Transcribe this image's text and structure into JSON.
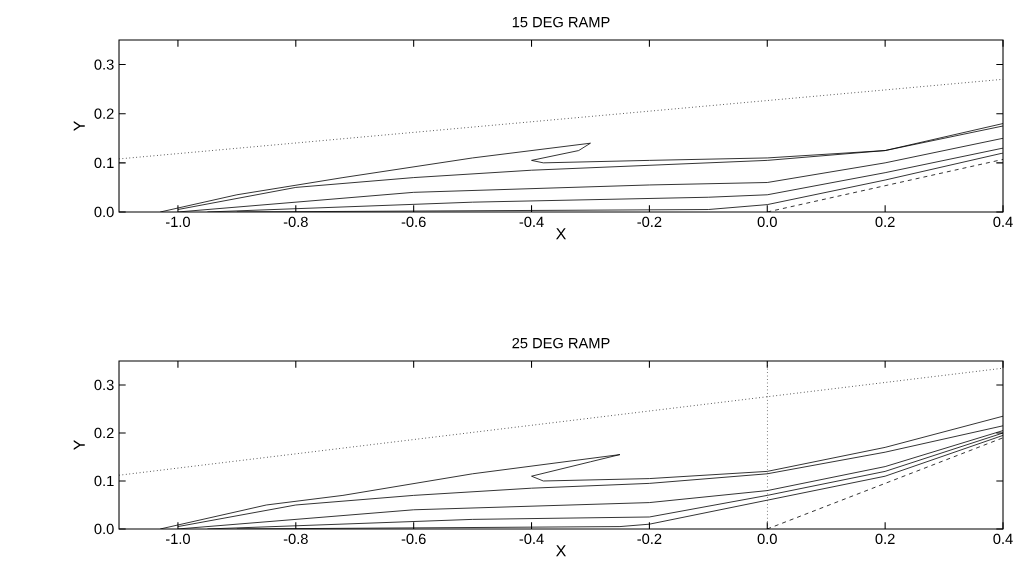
{
  "chart_data": [
    {
      "type": "line",
      "title": "15 DEG RAMP",
      "xlabel": "X",
      "ylabel": "Y",
      "xlim": [
        -1.1,
        0.4
      ],
      "ylim": [
        0,
        0.35
      ],
      "xticks": [
        {
          "value": -1.0,
          "label": "-1.0"
        },
        {
          "value": -0.8,
          "label": "-0.8"
        },
        {
          "value": -0.6,
          "label": "-0.6"
        },
        {
          "value": -0.4,
          "label": "-0.4"
        },
        {
          "value": -0.2,
          "label": "-0.2"
        },
        {
          "value": 0.0,
          "label": "0.0"
        },
        {
          "value": 0.2,
          "label": "0.2"
        },
        {
          "value": 0.4,
          "label": "0.4"
        }
      ],
      "yticks": [
        {
          "value": 0.0,
          "label": "0.0"
        },
        {
          "value": 0.1,
          "label": "0.1"
        },
        {
          "value": 0.2,
          "label": "0.2"
        },
        {
          "value": 0.3,
          "label": "0.3"
        }
      ],
      "grid": false,
      "series": [
        {
          "color": "#000000",
          "line_style": "dotted",
          "x": [
            -1.1,
            0.4
          ],
          "values": [
            0.108,
            0.27
          ]
        },
        {
          "color": "#000000",
          "line_style": "dashed",
          "x": [
            0.0,
            0.4
          ],
          "values": [
            0.0,
            0.107
          ]
        },
        {
          "color": "#000000",
          "line_style": "solid",
          "x": [
            -1.03,
            -0.9,
            -0.72,
            -0.5,
            -0.3,
            -0.32,
            -0.4,
            -0.38,
            -0.2,
            0.0,
            0.2,
            0.4
          ],
          "values": [
            0.0,
            0.035,
            0.07,
            0.11,
            0.14,
            0.125,
            0.105,
            0.1,
            0.105,
            0.11,
            0.125,
            0.18
          ]
        },
        {
          "color": "#000000",
          "line_style": "solid",
          "x": [
            -1.0,
            -0.8,
            -0.6,
            -0.4,
            -0.2,
            0.0,
            0.2,
            0.4
          ],
          "values": [
            0.005,
            0.05,
            0.07,
            0.085,
            0.095,
            0.105,
            0.125,
            0.175
          ]
        },
        {
          "color": "#000000",
          "line_style": "solid",
          "x": [
            -1.0,
            -0.6,
            -0.2,
            0.0,
            0.2,
            0.4
          ],
          "values": [
            0.0,
            0.04,
            0.055,
            0.06,
            0.1,
            0.15
          ]
        },
        {
          "color": "#000000",
          "line_style": "solid",
          "x": [
            -0.95,
            -0.5,
            -0.1,
            0.0,
            0.2,
            0.4
          ],
          "values": [
            0.0,
            0.02,
            0.03,
            0.035,
            0.08,
            0.13
          ]
        },
        {
          "color": "#000000",
          "line_style": "solid",
          "x": [
            -0.9,
            -0.1,
            0.0,
            0.2,
            0.4
          ],
          "values": [
            0.0,
            0.005,
            0.015,
            0.065,
            0.12
          ]
        }
      ]
    },
    {
      "type": "line",
      "title": "25 DEG RAMP",
      "xlabel": "X",
      "ylabel": "Y",
      "xlim": [
        -1.1,
        0.4
      ],
      "ylim": [
        0,
        0.35
      ],
      "xticks": [
        {
          "value": -1.0,
          "label": "-1.0"
        },
        {
          "value": -0.8,
          "label": "-0.8"
        },
        {
          "value": -0.6,
          "label": "-0.6"
        },
        {
          "value": -0.4,
          "label": "-0.4"
        },
        {
          "value": -0.2,
          "label": "-0.2"
        },
        {
          "value": 0.0,
          "label": "0.0"
        },
        {
          "value": 0.2,
          "label": "0.2"
        },
        {
          "value": 0.4,
          "label": "0.4"
        }
      ],
      "yticks": [
        {
          "value": 0.0,
          "label": "0.0"
        },
        {
          "value": 0.1,
          "label": "0.1"
        },
        {
          "value": 0.2,
          "label": "0.2"
        },
        {
          "value": 0.3,
          "label": "0.3"
        }
      ],
      "grid": false,
      "ref_lines": [
        {
          "axis": "x",
          "value": 0.0,
          "line_style": "dotted"
        }
      ],
      "series": [
        {
          "color": "#000000",
          "line_style": "dotted",
          "x": [
            -1.1,
            0.4
          ],
          "values": [
            0.112,
            0.335
          ]
        },
        {
          "color": "#000000",
          "line_style": "dashed",
          "x": [
            0.0,
            0.4
          ],
          "values": [
            0.0,
            0.19
          ]
        },
        {
          "color": "#000000",
          "line_style": "solid",
          "x": [
            -1.03,
            -0.85,
            -0.72,
            -0.5,
            -0.25,
            -0.3,
            -0.4,
            -0.38,
            -0.2,
            0.0,
            0.2,
            0.4
          ],
          "values": [
            0.0,
            0.05,
            0.07,
            0.115,
            0.155,
            0.14,
            0.11,
            0.1,
            0.105,
            0.12,
            0.17,
            0.235
          ]
        },
        {
          "color": "#000000",
          "line_style": "solid",
          "x": [
            -1.0,
            -0.8,
            -0.6,
            -0.4,
            -0.2,
            0.0,
            0.2,
            0.4
          ],
          "values": [
            0.005,
            0.05,
            0.07,
            0.085,
            0.095,
            0.115,
            0.16,
            0.215
          ]
        },
        {
          "color": "#000000",
          "line_style": "solid",
          "x": [
            -1.0,
            -0.6,
            -0.2,
            0.0,
            0.2,
            0.4
          ],
          "values": [
            0.0,
            0.04,
            0.055,
            0.08,
            0.13,
            0.205
          ]
        },
        {
          "color": "#000000",
          "line_style": "solid",
          "x": [
            -0.95,
            -0.5,
            -0.2,
            0.0,
            0.2,
            0.4
          ],
          "values": [
            0.0,
            0.02,
            0.025,
            0.07,
            0.12,
            0.2
          ]
        },
        {
          "color": "#000000",
          "line_style": "solid",
          "x": [
            -0.9,
            -0.25,
            -0.2,
            0.0,
            0.2,
            0.4
          ],
          "values": [
            0.0,
            0.005,
            0.01,
            0.06,
            0.11,
            0.195
          ]
        }
      ]
    }
  ]
}
